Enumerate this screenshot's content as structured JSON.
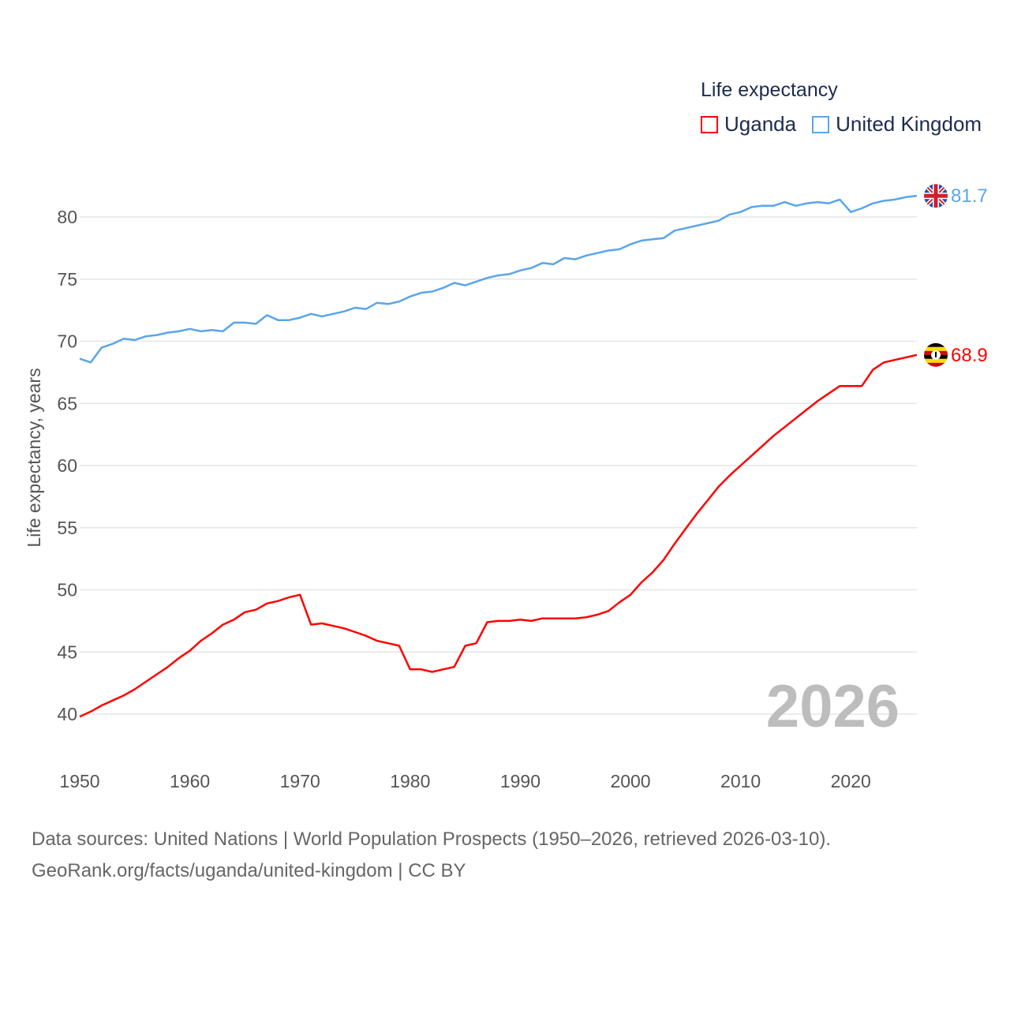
{
  "chart_data": {
    "type": "line",
    "title": "Life expectancy",
    "ylabel": "Life expectancy, years",
    "xlabel": "",
    "xlim": [
      1950,
      2026
    ],
    "ylim": [
      40,
      80
    ],
    "yticks": [
      40,
      45,
      50,
      55,
      60,
      65,
      70,
      75,
      80
    ],
    "xticks": [
      1950,
      1960,
      1970,
      1980,
      1990,
      2000,
      2010,
      2020
    ],
    "grid": true,
    "legend_position": "top-right",
    "year_watermark": "2026",
    "x": [
      1950,
      1951,
      1952,
      1953,
      1954,
      1955,
      1956,
      1957,
      1958,
      1959,
      1960,
      1961,
      1962,
      1963,
      1964,
      1965,
      1966,
      1967,
      1968,
      1969,
      1970,
      1971,
      1972,
      1973,
      1974,
      1975,
      1976,
      1977,
      1978,
      1979,
      1980,
      1981,
      1982,
      1983,
      1984,
      1985,
      1986,
      1987,
      1988,
      1989,
      1990,
      1991,
      1992,
      1993,
      1994,
      1995,
      1996,
      1997,
      1998,
      1999,
      2000,
      2001,
      2002,
      2003,
      2004,
      2005,
      2006,
      2007,
      2008,
      2009,
      2010,
      2011,
      2012,
      2013,
      2014,
      2015,
      2016,
      2017,
      2018,
      2019,
      2020,
      2021,
      2022,
      2023,
      2024,
      2025,
      2026
    ],
    "series": [
      {
        "name": "Uganda",
        "color": "#ff0000",
        "end_label": "68.9",
        "values": [
          39.8,
          40.2,
          40.7,
          41.1,
          41.5,
          42.0,
          42.6,
          43.2,
          43.8,
          44.5,
          45.1,
          45.9,
          46.5,
          47.2,
          47.6,
          48.2,
          48.4,
          48.9,
          49.1,
          49.4,
          49.6,
          47.2,
          47.3,
          47.1,
          46.9,
          46.6,
          46.3,
          45.9,
          45.7,
          45.5,
          43.6,
          43.6,
          43.4,
          43.6,
          43.8,
          45.5,
          45.7,
          47.4,
          47.5,
          47.5,
          47.6,
          47.5,
          47.7,
          47.7,
          47.7,
          47.7,
          47.8,
          48.0,
          48.3,
          49.0,
          49.6,
          50.6,
          51.4,
          52.4,
          53.7,
          54.9,
          56.1,
          57.2,
          58.3,
          59.2,
          60.0,
          60.8,
          61.6,
          62.4,
          63.1,
          63.8,
          64.5,
          65.2,
          65.8,
          66.4,
          66.4,
          66.4,
          67.7,
          68.3,
          68.5,
          68.7,
          68.9
        ]
      },
      {
        "name": "United Kingdom",
        "color": "#5aa5eb",
        "end_label": "81.7",
        "values": [
          68.6,
          68.3,
          69.5,
          69.8,
          70.2,
          70.1,
          70.4,
          70.5,
          70.7,
          70.8,
          71.0,
          70.8,
          70.9,
          70.8,
          71.5,
          71.5,
          71.4,
          72.1,
          71.7,
          71.7,
          71.9,
          72.2,
          72.0,
          72.2,
          72.4,
          72.7,
          72.6,
          73.1,
          73.0,
          73.2,
          73.6,
          73.9,
          74.0,
          74.3,
          74.7,
          74.5,
          74.8,
          75.1,
          75.3,
          75.4,
          75.7,
          75.9,
          76.3,
          76.2,
          76.7,
          76.6,
          76.9,
          77.1,
          77.3,
          77.4,
          77.8,
          78.1,
          78.2,
          78.3,
          78.9,
          79.1,
          79.3,
          79.5,
          79.7,
          80.2,
          80.4,
          80.8,
          80.9,
          80.9,
          81.2,
          80.9,
          81.1,
          81.2,
          81.1,
          81.4,
          80.4,
          80.7,
          81.1,
          81.3,
          81.4,
          81.6,
          81.7
        ]
      }
    ]
  },
  "source": {
    "line1": "Data sources: United Nations | World Population Prospects (1950–2026, retrieved 2026-03-10).",
    "line2": "GeoRank.org/facts/uganda/united-kingdom | CC BY"
  }
}
